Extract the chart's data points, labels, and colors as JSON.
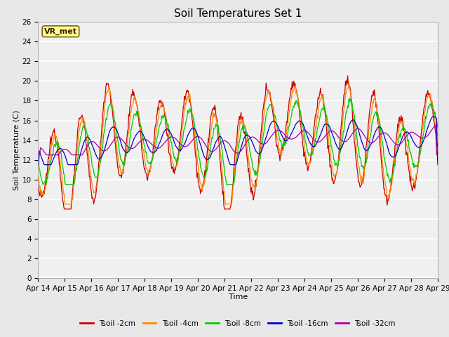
{
  "title": "Soil Temperatures Set 1",
  "xlabel": "Time",
  "ylabel": "Soil Temperature (C)",
  "ylim": [
    0,
    26
  ],
  "yticks": [
    0,
    2,
    4,
    6,
    8,
    10,
    12,
    14,
    16,
    18,
    20,
    22,
    24,
    26
  ],
  "x_labels": [
    "Apr 14",
    "Apr 15",
    "Apr 16",
    "Apr 17",
    "Apr 18",
    "Apr 19",
    "Apr 20",
    "Apr 21",
    "Apr 22",
    "Apr 23",
    "Apr 24",
    "Apr 25",
    "Apr 26",
    "Apr 27",
    "Apr 28",
    "Apr 29"
  ],
  "series": [
    {
      "label": "Tsoil -2cm",
      "color": "#cc0000"
    },
    {
      "label": "Tsoil -4cm",
      "color": "#ff8800"
    },
    {
      "label": "Tsoil -8cm",
      "color": "#00cc00"
    },
    {
      "label": "Tsoil -16cm",
      "color": "#0000cc"
    },
    {
      "label": "Tsoil -32cm",
      "color": "#aa00aa"
    }
  ],
  "station_label": "VR_met",
  "station_box_color": "#ffff99",
  "station_border_color": "#886600",
  "background_color": "#e8e8e8",
  "plot_bg_color": "#f0f0f0",
  "grid_color": "#ffffff",
  "title_fontsize": 11,
  "label_fontsize": 8,
  "tick_fontsize": 7.5
}
